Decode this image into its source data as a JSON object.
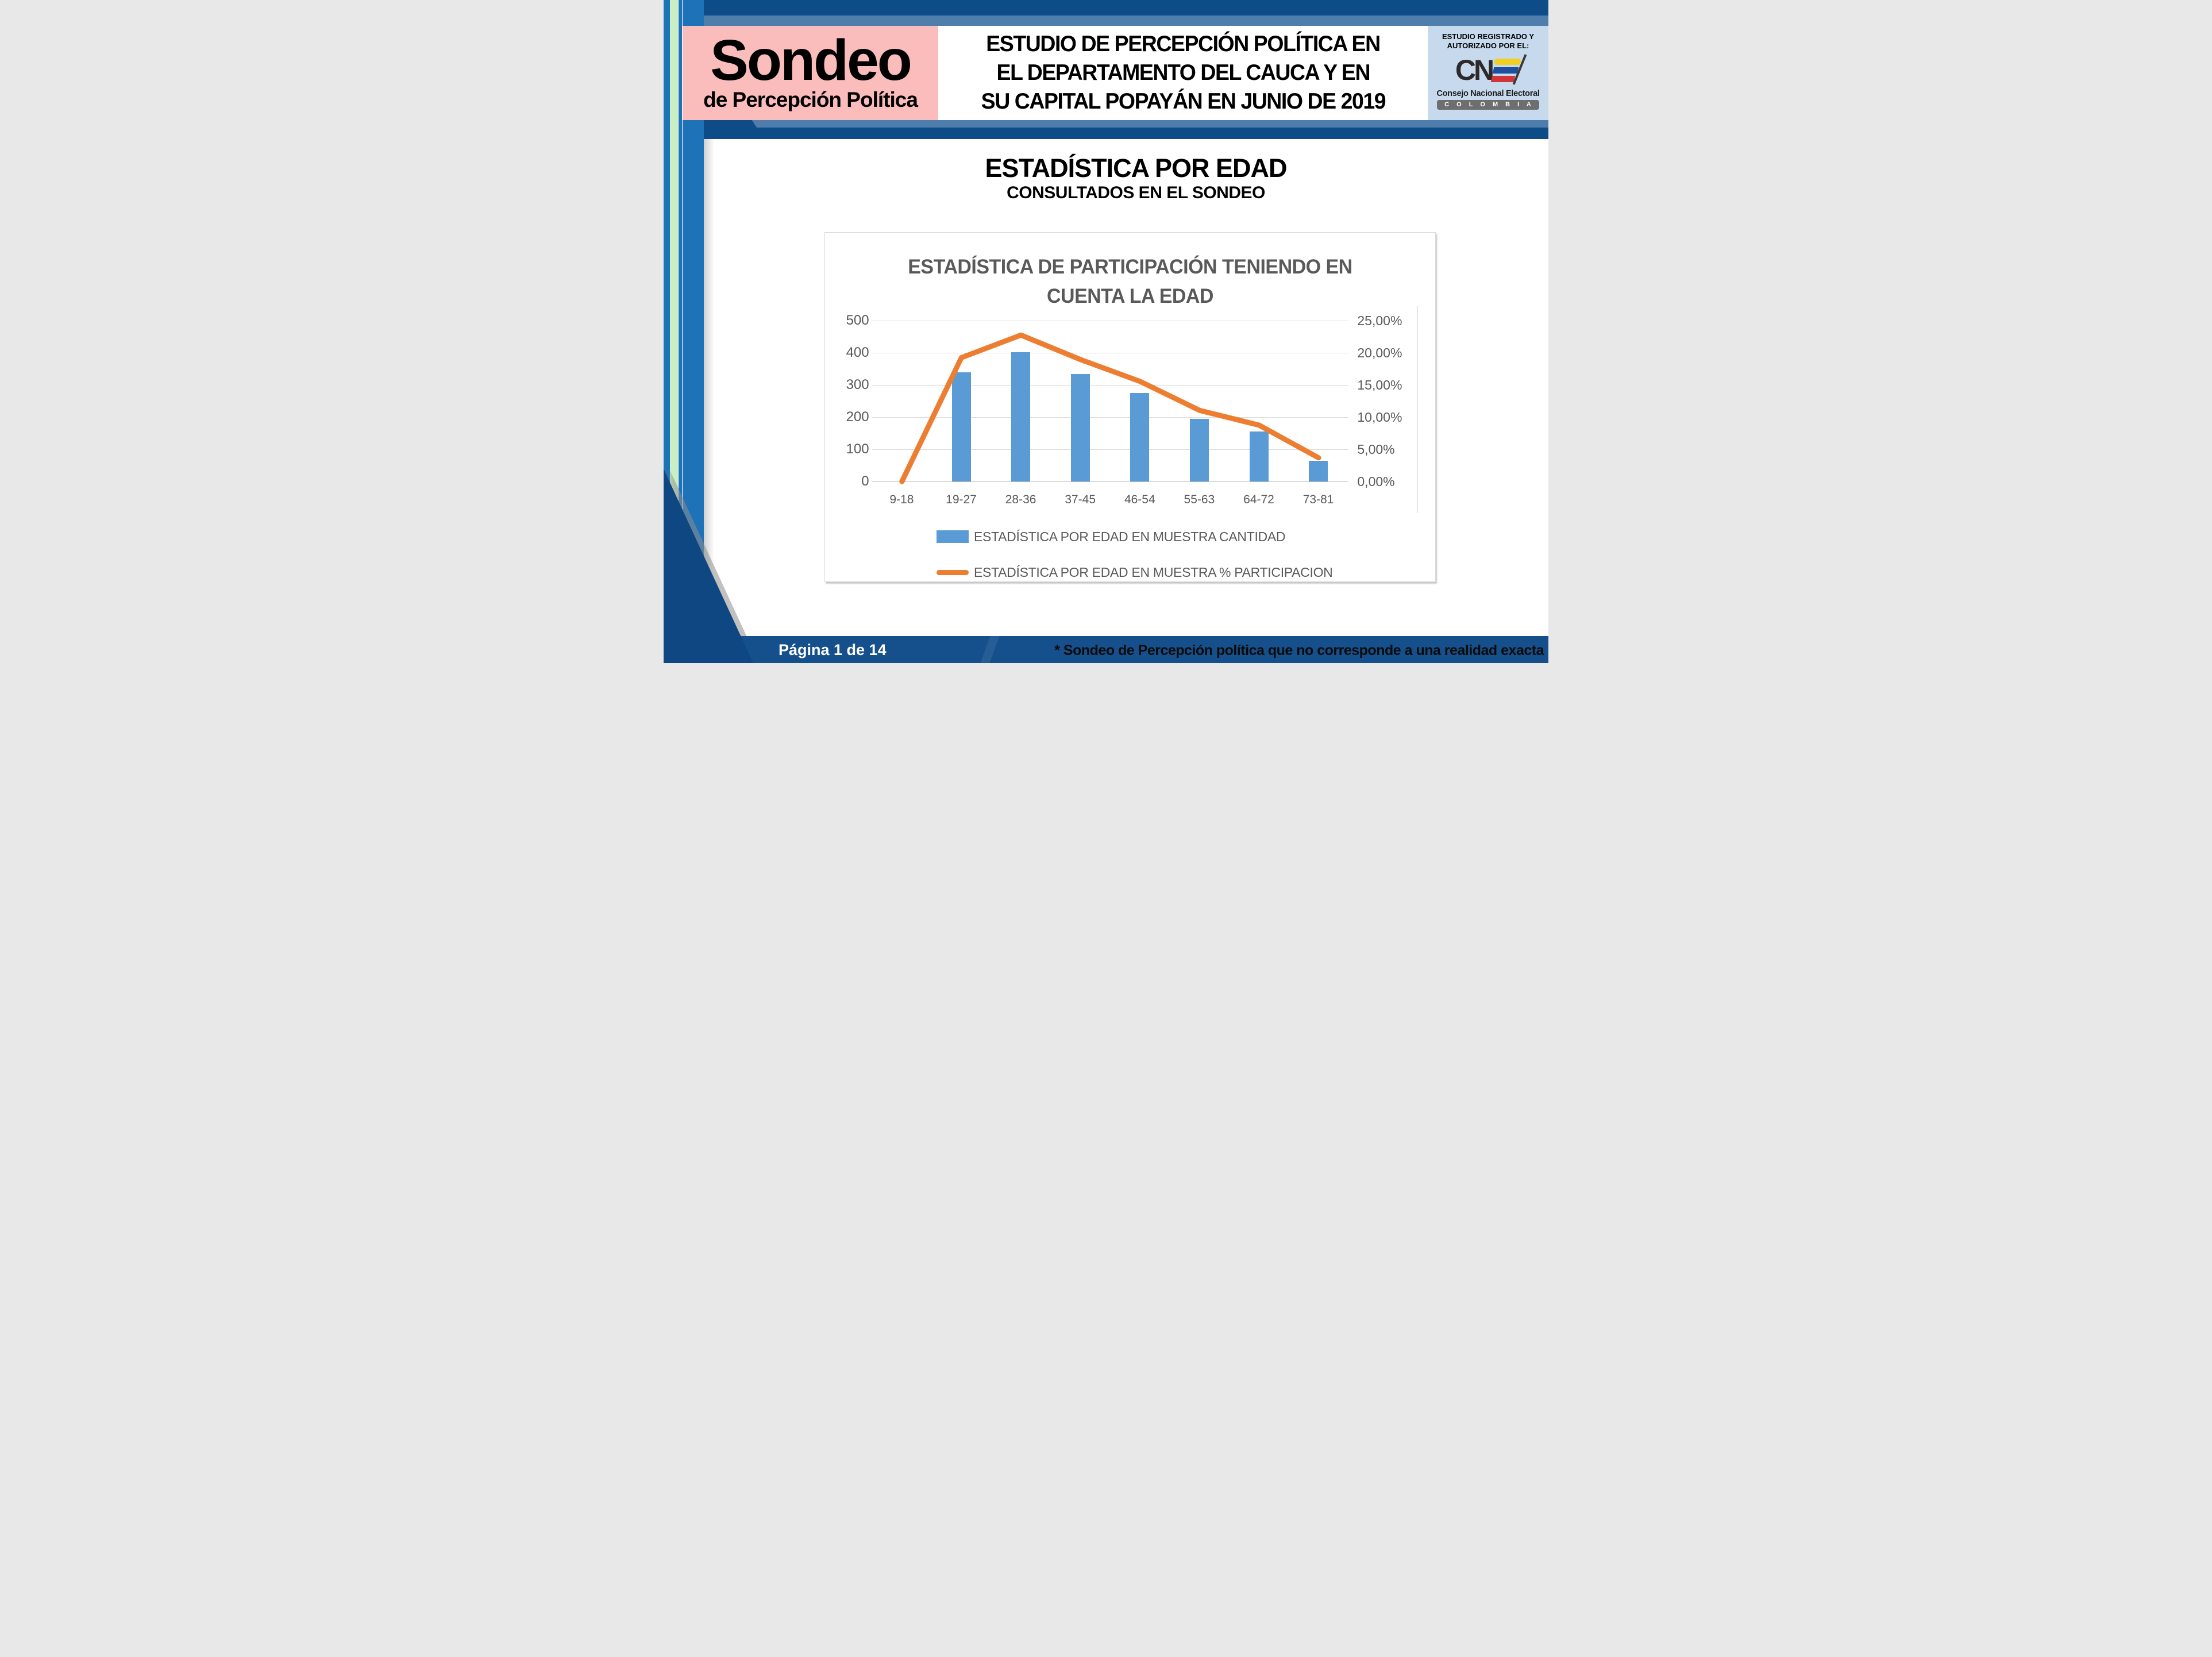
{
  "header": {
    "logo": {
      "title": "Sondeo",
      "subtitle": "de Percepción Política"
    },
    "title_lines": [
      "ESTUDIO DE PERCEPCIÓN POLÍTICA EN",
      "EL DEPARTAMENTO DEL CAUCA Y EN",
      "SU CAPITAL POPAYÁN EN JUNIO DE 2019"
    ],
    "cne": {
      "registered_line1": "ESTUDIO REGISTRADO Y",
      "registered_line2": "AUTORIZADO POR EL:",
      "logo_text": "CN",
      "org_name": "Consejo Nacional Electoral",
      "country": "C O L O M B I A"
    }
  },
  "section": {
    "title": "ESTADÍSTICA POR EDAD",
    "subtitle": "CONSULTADOS EN EL SONDEO"
  },
  "chart_data": {
    "type": "bar",
    "title_lines": [
      "ESTADÍSTICA DE PARTICIPACIÓN TENIENDO EN",
      "CUENTA LA EDAD"
    ],
    "categories": [
      "9-18",
      "19-27",
      "28-36",
      "37-45",
      "46-54",
      "55-63",
      "64-72",
      "73-81"
    ],
    "series": [
      {
        "name": "ESTADÍSTICA POR EDAD EN MUESTRA CANTIDAD",
        "type": "bar",
        "axis": "left",
        "color": "#5B9BD5",
        "values": [
          0,
          340,
          402,
          335,
          275,
          195,
          155,
          65
        ]
      },
      {
        "name": "ESTADÍSTICA POR EDAD EN MUESTRA % PARTICIPACION",
        "type": "line",
        "axis": "right",
        "color": "#ED7D31",
        "unit": "%",
        "values": [
          0,
          19.25,
          22.75,
          18.95,
          15.55,
          11.05,
          8.75,
          3.68
        ]
      }
    ],
    "left_axis": {
      "min": 0,
      "max": 500,
      "tick_labels": [
        "500",
        "400",
        "300",
        "200",
        "100",
        "0"
      ]
    },
    "right_axis": {
      "min": 0,
      "max": 25,
      "tick_labels": [
        "25,00%",
        "20,00%",
        "15,00%",
        "10,00%",
        "5,00%",
        "0,00%"
      ]
    },
    "grid": true,
    "legend_position": "bottom"
  },
  "footer": {
    "page_label": "Página 1 de 14",
    "disclaimer": "* Sondeo de Percepción política que no corresponde a una realidad exacta"
  },
  "colors": {
    "navy": "#0D4C86",
    "slate_blue": "#4F7DAC",
    "stripe_blue": "#1E72B8",
    "stripe_green": "#C9EFC4",
    "logo_pink": "#FBBCBC",
    "cne_panel_blue": "#C6D9ED",
    "footer_blue": "#15508C",
    "bar_blue": "#5B9BD5",
    "line_orange": "#ED7D31",
    "chart_text_gray": "#595959",
    "grid_gray": "#D9D9D9"
  }
}
